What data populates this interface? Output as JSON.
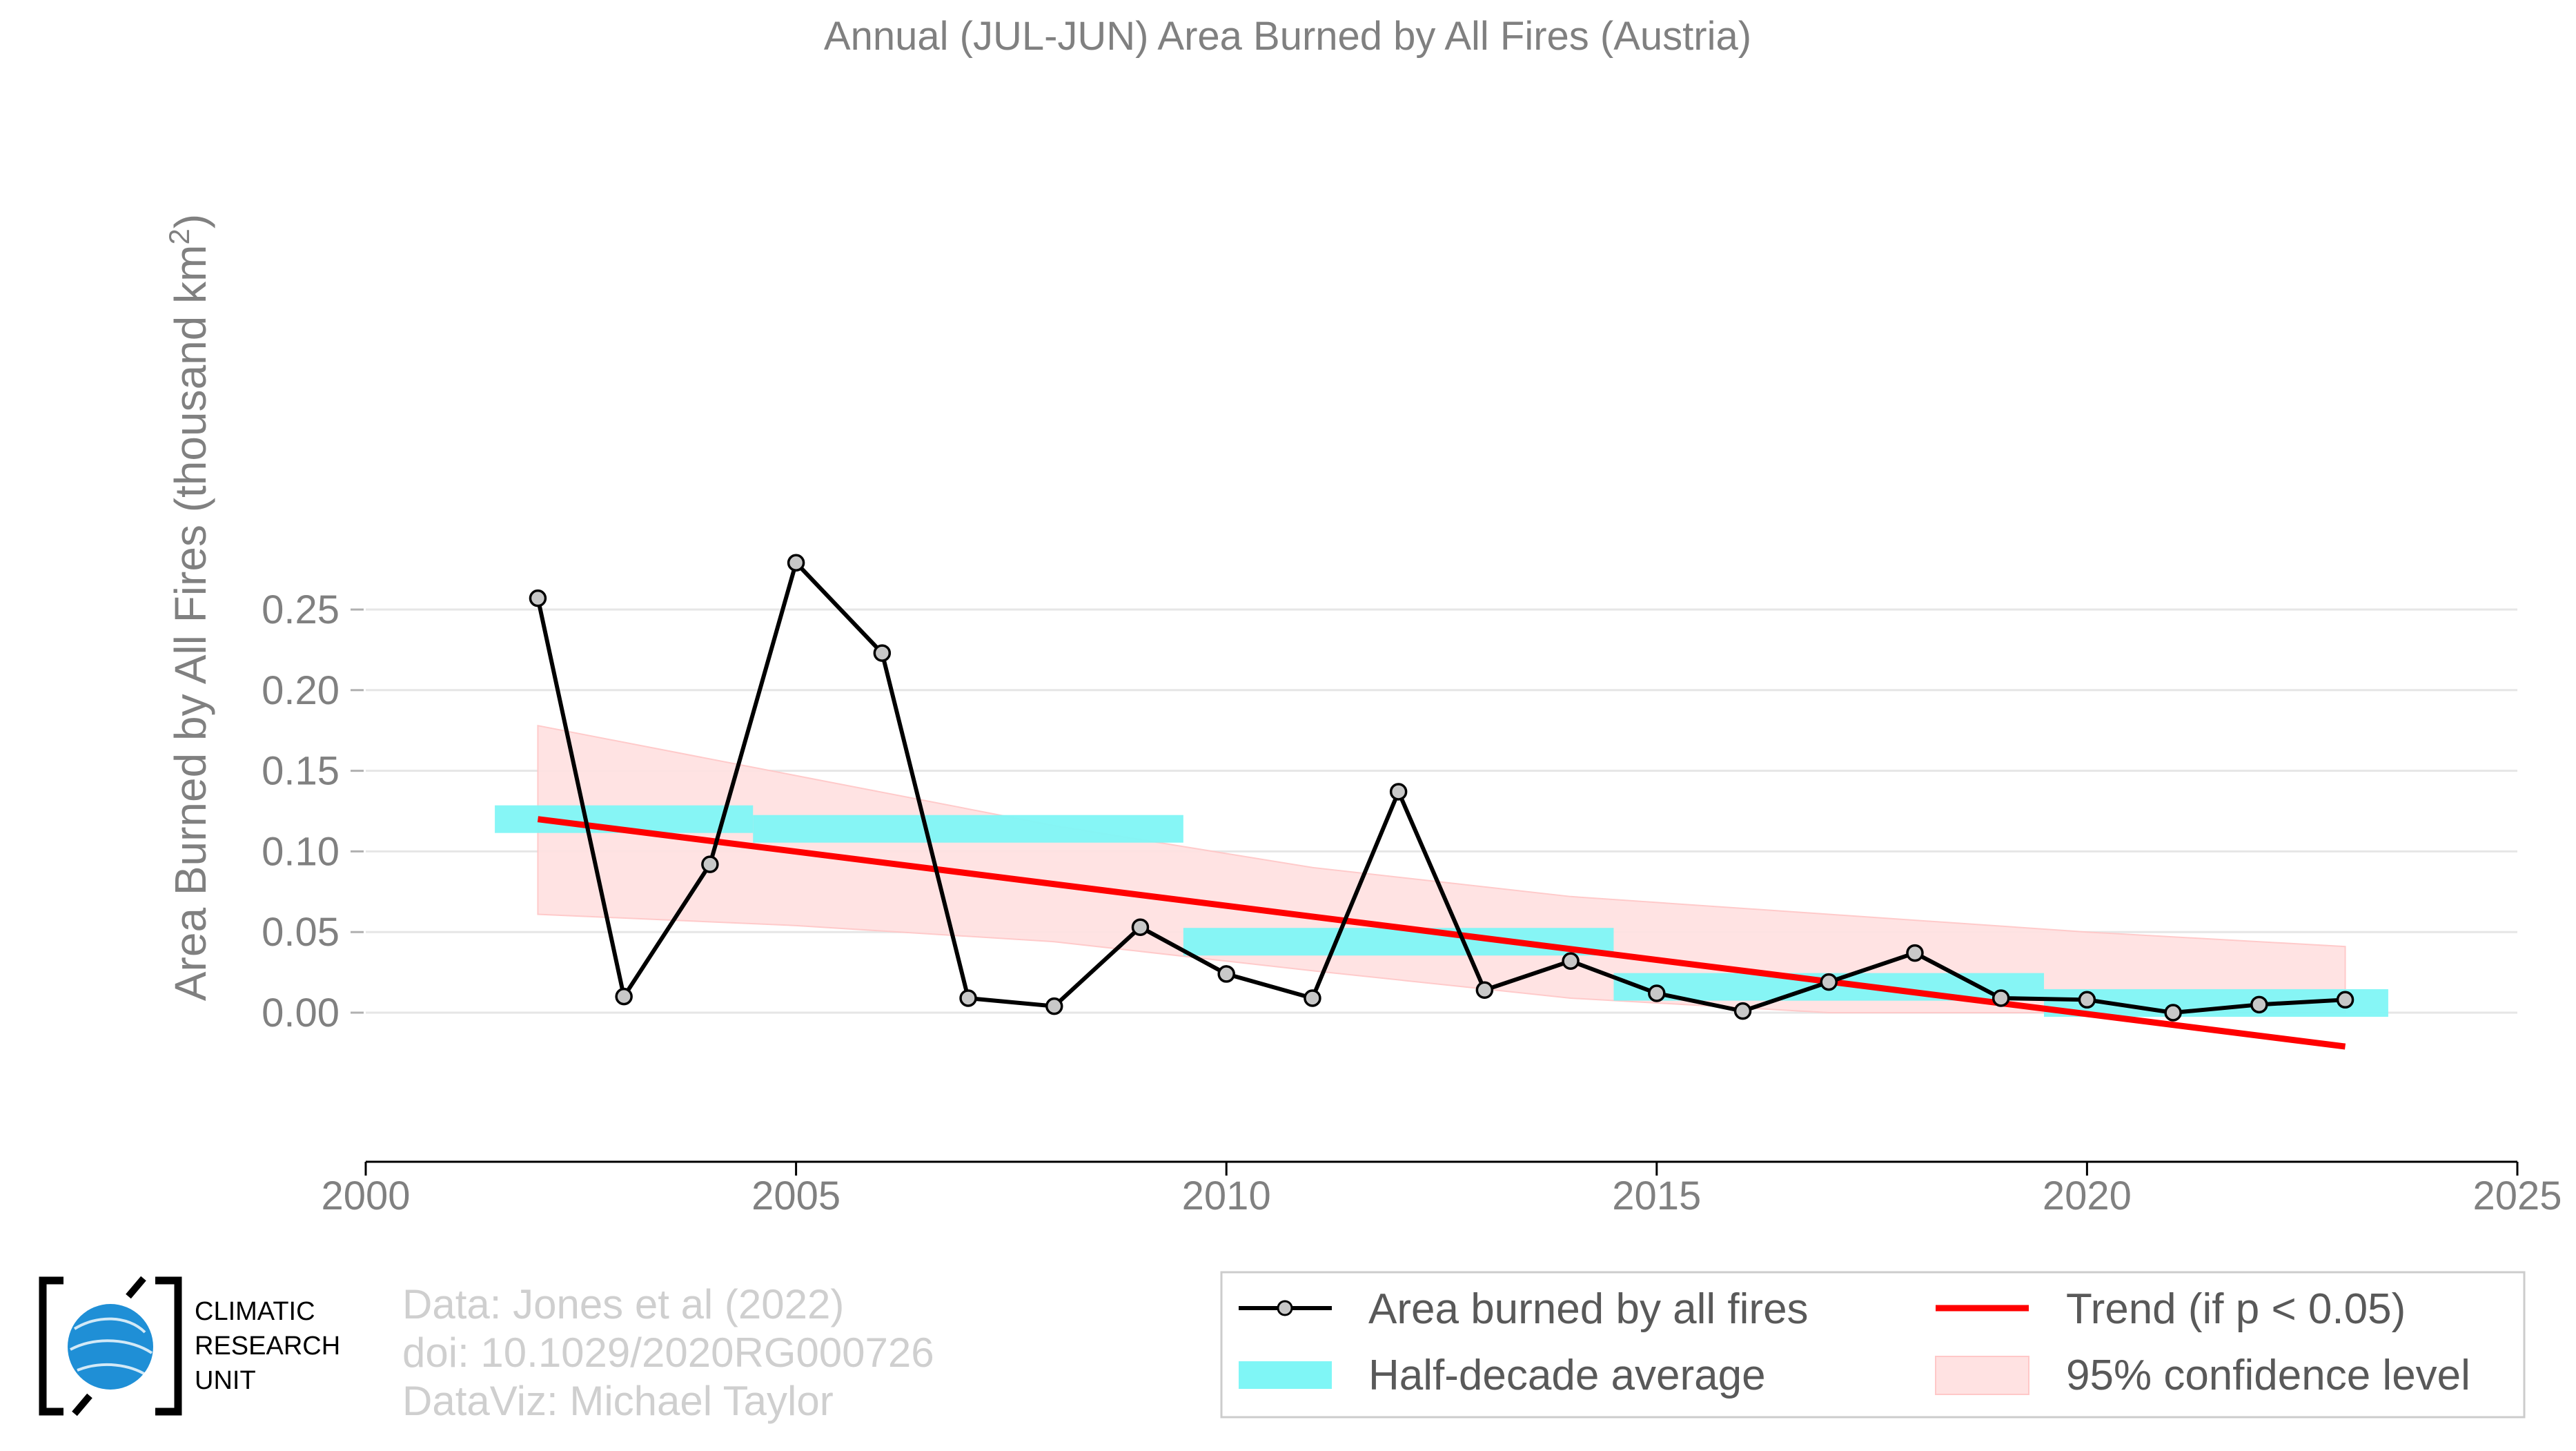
{
  "chart_data": {
    "type": "line",
    "title": "Annual (JUL-JUN) Area Burned by All Fires (Austria)",
    "ylabel": "Area Burned by All Fires (thousand km²)",
    "xlabel": "",
    "xlim": [
      2000,
      2025
    ],
    "ylim": [
      -0.045,
      0.285
    ],
    "x_ticks": [
      2000,
      2005,
      2010,
      2015,
      2020,
      2025
    ],
    "y_ticks": [
      0.0,
      0.05,
      0.1,
      0.15,
      0.2,
      0.25
    ],
    "y_tick_labels": [
      "0.00",
      "0.05",
      "0.10",
      "0.15",
      "0.20",
      "0.25"
    ],
    "grid": "horizontal",
    "series": [
      {
        "name": "Area burned by all fires",
        "kind": "line-markers",
        "color": "#000000",
        "x": [
          2002,
          2003,
          2004,
          2005,
          2006,
          2007,
          2008,
          2009,
          2010,
          2011,
          2012,
          2013,
          2014,
          2015,
          2016,
          2017,
          2018,
          2019,
          2020,
          2021,
          2022,
          2023
        ],
        "y": [
          0.257,
          0.01,
          0.092,
          0.279,
          0.223,
          0.009,
          0.004,
          0.053,
          0.024,
          0.009,
          0.137,
          0.014,
          0.032,
          0.012,
          0.001,
          0.019,
          0.037,
          0.009,
          0.008,
          0.0,
          0.005,
          0.008
        ]
      },
      {
        "name": "Half-decade average",
        "kind": "step-bars",
        "color": "#7ff6f6",
        "segments": [
          {
            "x0": 2001.5,
            "x1": 2004.5,
            "y": 0.12
          },
          {
            "x0": 2004.5,
            "x1": 2009.5,
            "y": 0.114
          },
          {
            "x0": 2009.5,
            "x1": 2014.5,
            "y": 0.044
          },
          {
            "x0": 2014.5,
            "x1": 2019.5,
            "y": 0.016
          },
          {
            "x0": 2019.5,
            "x1": 2023.5,
            "y": 0.006
          }
        ]
      },
      {
        "name": "Trend (if p < 0.05)",
        "kind": "line",
        "color": "#ff0000",
        "x": [
          2002,
          2023
        ],
        "y": [
          0.12,
          -0.021
        ]
      },
      {
        "name": "95% confidence level",
        "kind": "band",
        "color": "#ffe2e2",
        "x": [
          2002,
          2005,
          2008,
          2011,
          2014,
          2017,
          2020,
          2023
        ],
        "upper": [
          0.178,
          0.147,
          0.116,
          0.09,
          0.072,
          0.061,
          0.05,
          0.041
        ],
        "lower": [
          0.061,
          0.054,
          0.044,
          0.026,
          0.009,
          0.0,
          0.0,
          0.0
        ]
      }
    ],
    "legend": {
      "placement": "bottom-right",
      "entries": [
        "Area burned by all fires",
        "Trend (if p < 0.05)",
        "Half-decade average",
        "95% confidence level"
      ]
    }
  },
  "logo": {
    "lines": [
      "CLIMATIC",
      "RESEARCH",
      "UNIT"
    ]
  },
  "credits": [
    "Data: Jones et al (2022)",
    "doi: 10.1029/2020RG000726",
    "DataViz: Michael Taylor"
  ]
}
